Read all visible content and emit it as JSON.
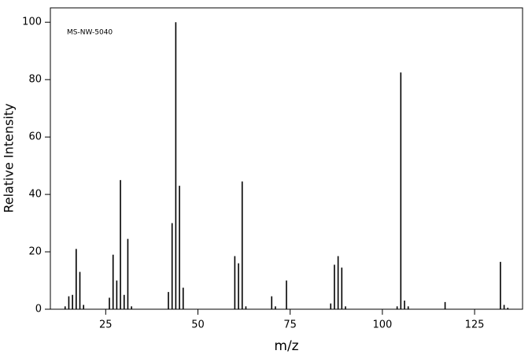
{
  "chart_data": {
    "type": "stick",
    "annotation": "MS-NW-5040",
    "x_label": "m/z",
    "y_label": "Relative Intensity",
    "x": [
      14,
      15,
      16,
      17,
      18,
      19,
      26,
      27,
      28,
      29,
      30,
      31,
      32,
      42,
      43,
      44,
      45,
      46,
      60,
      61,
      62,
      63,
      70,
      71,
      74,
      86,
      87,
      88,
      89,
      90,
      104,
      105,
      106,
      107,
      117,
      132,
      133,
      134
    ],
    "values": [
      1,
      4.5,
      5,
      21,
      13,
      1.5,
      4,
      19,
      10,
      45,
      5,
      24.5,
      1,
      6,
      30,
      100,
      43,
      7.5,
      18.5,
      16,
      44.5,
      1,
      4.5,
      1,
      10,
      2,
      15.5,
      18.5,
      14.5,
      1,
      1,
      82.5,
      3,
      1,
      2.5,
      16.5,
      1.5,
      0.5
    ],
    "color": "#000000",
    "xlim": [
      10,
      138
    ],
    "ylim": [
      0,
      105
    ],
    "xticks": [
      25,
      50,
      75,
      100,
      125
    ],
    "yticks": [
      0,
      20,
      40,
      60,
      80,
      100
    ]
  }
}
